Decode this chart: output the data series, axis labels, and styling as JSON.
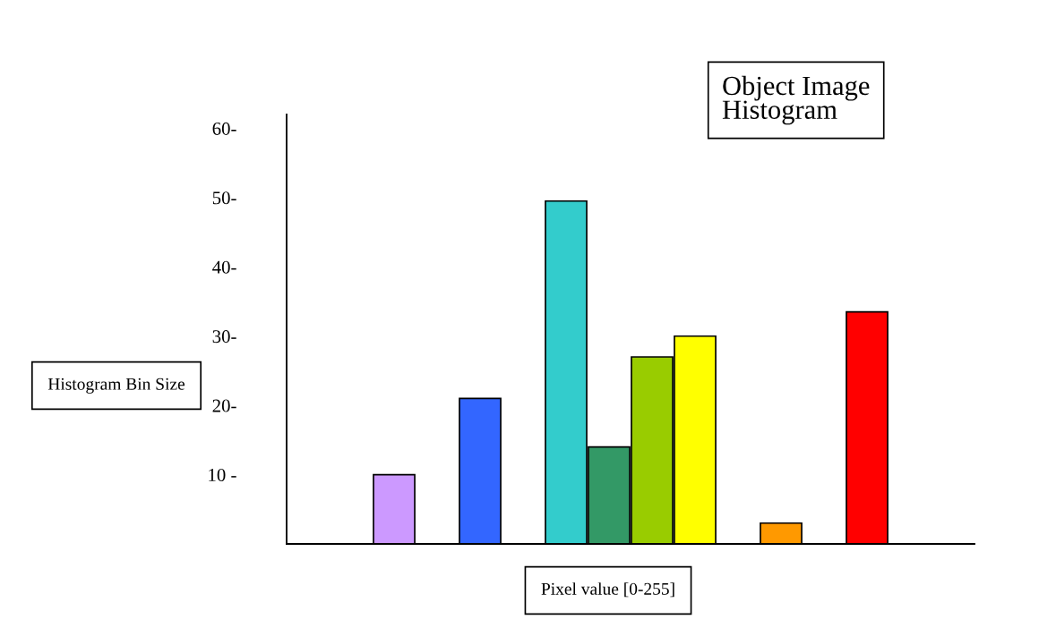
{
  "chart_data": {
    "type": "bar",
    "title": "Object Image Histogram",
    "xlabel": "Pixel value [0-255]",
    "ylabel": "Histogram Bin Size",
    "categories": [
      null,
      null,
      null,
      null,
      null,
      null,
      null,
      null,
      null,
      null,
      null,
      null,
      null,
      null,
      null,
      null
    ],
    "values": [
      null,
      null,
      10,
      null,
      21,
      null,
      49.5,
      14,
      27,
      30,
      null,
      3,
      null,
      33.5,
      null,
      null
    ],
    "colors": [
      null,
      null,
      "#cc99ff",
      null,
      "#3366ff",
      null,
      "#33cccc",
      "#339966",
      "#99cc00",
      "#ffff00",
      null,
      "#ff9900",
      null,
      "#ff0000",
      null,
      null
    ],
    "ylim": [
      0,
      62
    ],
    "yticks": [
      {
        "value": 10,
        "label": "10 -"
      },
      {
        "value": 20,
        "label": "20-"
      },
      {
        "value": 30,
        "label": "30-"
      },
      {
        "value": 40,
        "label": "40-"
      },
      {
        "value": 50,
        "label": "50-"
      },
      {
        "value": 60,
        "label": "60-"
      }
    ],
    "grid": false,
    "legend": false
  }
}
